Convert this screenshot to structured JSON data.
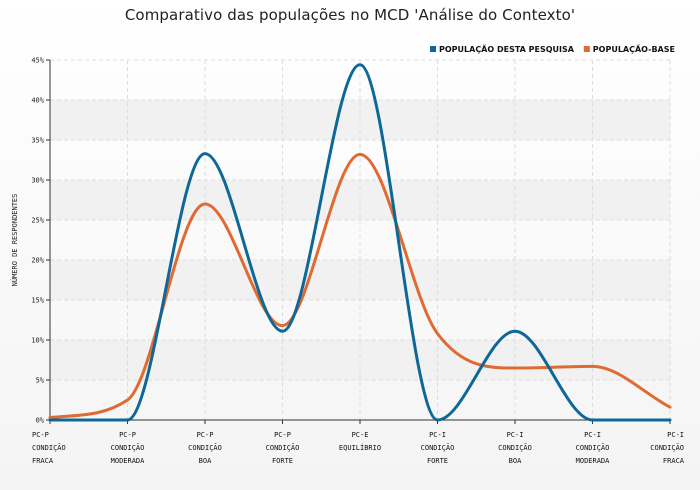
{
  "title": "Comparativo das populações no MCD 'Análise do Contexto'",
  "chart_data": {
    "type": "line",
    "title": "Comparativo das populações no MCD 'Análise do Contexto'",
    "xlabel": "",
    "ylabel": "NÚMERO DE RESPONDENTES",
    "ylim": [
      0,
      45
    ],
    "yticks": [
      "0%",
      "5%",
      "10%",
      "15%",
      "20%",
      "25%",
      "30%",
      "35%",
      "40%",
      "45%"
    ],
    "grid": true,
    "legend_position": "top-right",
    "categories": [
      [
        "PC-P",
        "CONDIÇÃO",
        "FRACA"
      ],
      [
        "PC-P",
        "CONDIÇÃO",
        "MODERADA"
      ],
      [
        "PC-P",
        "CONDIÇÃO",
        "BOA"
      ],
      [
        "PC-P",
        "CONDIÇÃO",
        "FORTE"
      ],
      [
        "PC-E",
        "EQUILÍBRIO"
      ],
      [
        "PC-I",
        "CONDIÇÃO",
        "FORTE"
      ],
      [
        "PC-I",
        "CONDIÇÃO",
        "BOA"
      ],
      [
        "PC-I",
        "CONDIÇÃO",
        "MODERADA"
      ],
      [
        "PC-I",
        "CONDIÇÃO",
        "FRACA"
      ]
    ],
    "series": [
      {
        "name": "POPULAÇÃO DESTA PESQUISA",
        "color": "#0d6897",
        "values": [
          0,
          0,
          33.3,
          11.1,
          44.4,
          0,
          11.1,
          0,
          0
        ]
      },
      {
        "name": "POPULAÇÃO-BASE",
        "color": "#e06a31",
        "values": [
          0.3,
          2.5,
          27.0,
          11.8,
          33.2,
          10.8,
          6.5,
          6.7,
          1.6
        ]
      }
    ]
  }
}
